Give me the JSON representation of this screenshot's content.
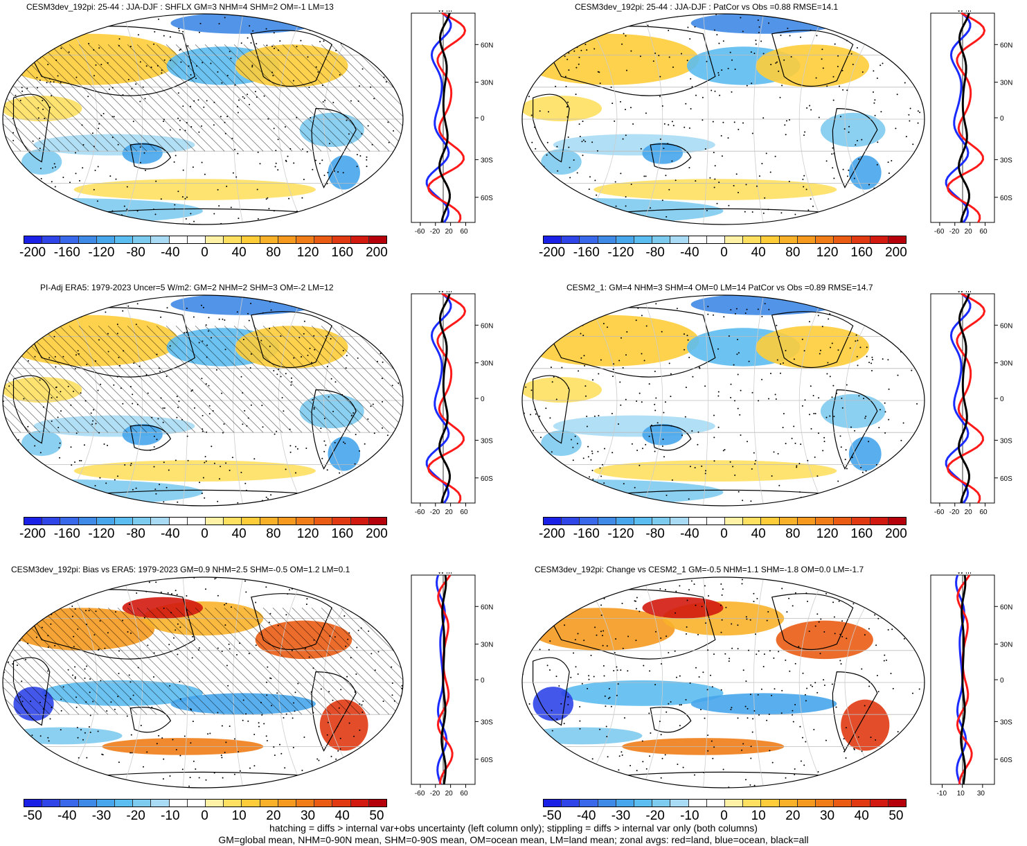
{
  "panels": [
    {
      "title": "CESM3dev_192pi: 25-44 : JJA-DJF : SHFLX GM=3 NHM=4 SHM=2 OM=-1 LM=13",
      "zonal_ticks": [
        "-60",
        "-20",
        "20",
        "60"
      ],
      "cbar_labels": [
        "-200",
        "-160",
        "-120",
        "-80",
        "-40",
        "0",
        "40",
        "80",
        "120",
        "160",
        "200"
      ]
    },
    {
      "title": "CESM3dev_192pi: 25-44 : JJA-DJF : PatCor vs Obs =0.88 RMSE=14.1",
      "zonal_ticks": [
        "-60",
        "-20",
        "20",
        "60"
      ],
      "cbar_labels": [
        "-200",
        "-160",
        "-120",
        "-80",
        "-40",
        "0",
        "40",
        "80",
        "120",
        "160",
        "200"
      ]
    },
    {
      "title": "PI-Adj ERA5: 1979-2023 Uncer=5 W/m2: GM=2 NHM=2 SHM=3 OM=-2 LM=12",
      "zonal_ticks": [
        "-60",
        "-20",
        "20",
        "60"
      ],
      "cbar_labels": [
        "-200",
        "-160",
        "-120",
        "-80",
        "-40",
        "0",
        "40",
        "80",
        "120",
        "160",
        "200"
      ]
    },
    {
      "title": "CESM2_1: GM=4 NHM=3 SHM=4 OM=0 LM=14 PatCor vs Obs =0.89 RMSE=14.7",
      "zonal_ticks": [
        "-60",
        "-20",
        "20",
        "60"
      ],
      "cbar_labels": [
        "-200",
        "-160",
        "-120",
        "-80",
        "-40",
        "0",
        "40",
        "80",
        "120",
        "160",
        "200"
      ]
    },
    {
      "title": "CESM3dev_192pi: Bias vs ERA5: 1979-2023 GM=0.9 NHM=2.5 SHM=-0.5 OM=1.2 LM=0.1",
      "zonal_ticks": [
        "-60",
        "-20",
        "20",
        "60"
      ],
      "cbar_labels": [
        "-50",
        "-40",
        "-30",
        "-20",
        "-10",
        "0",
        "10",
        "20",
        "30",
        "40",
        "50"
      ]
    },
    {
      "title": "CESM3dev_192pi: Change vs CESM2_1 GM=-0.5 NHM=1.1 SHM=-1.8 OM=0.0 LM=-1.7",
      "zonal_ticks": [
        "-10",
        "10",
        "30"
      ],
      "cbar_labels": [
        "-50",
        "-40",
        "-30",
        "-20",
        "-10",
        "0",
        "10",
        "20",
        "30",
        "40",
        "50"
      ]
    }
  ],
  "zonal_units": "W m⁻²",
  "lat_labels": [
    "60N",
    "30N",
    "0",
    "30S",
    "60S"
  ],
  "colors": {
    "palette": [
      "#1a20e6",
      "#2f45e8",
      "#3a68ea",
      "#3f8ae6",
      "#47a6ec",
      "#5cbdf0",
      "#7ecbf0",
      "#a9dbf4",
      "#ffffff",
      "#ffffff",
      "#fff1a6",
      "#ffe061",
      "#ffcd3a",
      "#f9b12a",
      "#f59a1f",
      "#f07d18",
      "#ea5c14",
      "#e13a12",
      "#d21a10",
      "#b5000b"
    ],
    "land": "#c8c8c8",
    "red": "#ff1a1a",
    "blue": "#1a2bff",
    "black": "#000000"
  },
  "footer": {
    "line1": "hatching = diffs > internal var+obs uncertainty (left column only); stippling = diffs > internal var only (both columns)",
    "line2": "GM=global mean, NHM=0-90N mean, SHM=0-90S mean, OM=ocean mean, LM=land mean; zonal avgs: red=land, blue=ocean, black=all"
  }
}
